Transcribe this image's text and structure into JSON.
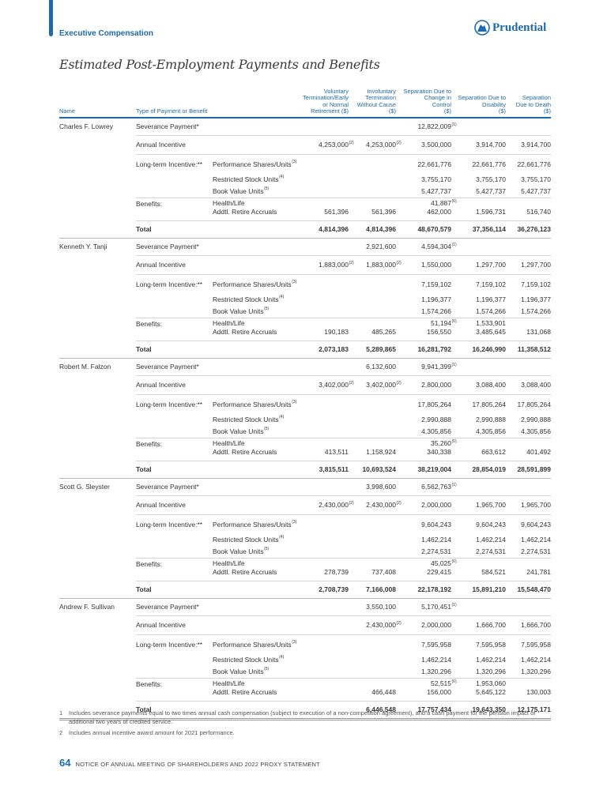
{
  "header": {
    "section": "Executive Compensation",
    "logo": "Prudential"
  },
  "title": "Estimated Post-Employment Payments and Benefits",
  "columns": {
    "name": "Name",
    "type": "Type of Payment or Benefit",
    "values": [
      [
        "Voluntary",
        "Termination/Early",
        "or Normal",
        "Retirement ($)"
      ],
      [
        "Involuntary",
        "Termination",
        "Without Cause",
        "($)"
      ],
      [
        "Separation Due to",
        "Change in",
        "Control",
        "($)"
      ],
      [
        "Separation Due to",
        "Disability",
        "($)"
      ],
      [
        "Separation",
        "Due to Death",
        "($)"
      ]
    ]
  },
  "labels": {
    "severance": "Severance Payment*",
    "annual": "Annual Incentive",
    "lti": "Long-term Incentive:**",
    "perf": "Performance Shares/Units",
    "perf_sup": "(3)",
    "rsu": "Restricted Stock Units",
    "rsu_sup": "(4)",
    "bvu": "Book Value Units",
    "bvu_sup": "(5)",
    "benefits": "Benefits:",
    "health": "Health/Life",
    "accruals": "Addtl. Retire Accruals",
    "total": "Total"
  },
  "people": [
    {
      "name": "Charles F. Lowrey",
      "severance": {
        "v": [
          "",
          "",
          "12,822,009",
          "",
          ""
        ],
        "s": [
          "",
          "",
          "(1)",
          "",
          ""
        ]
      },
      "annual": {
        "v": [
          "4,253,000",
          "4,253,000",
          "3,500,000",
          "3,914,700",
          "3,914,700"
        ],
        "s": [
          "(2)",
          "(2)",
          "",
          "",
          ""
        ]
      },
      "perf": {
        "v": [
          "",
          "",
          "22,661,776",
          "22,661,776",
          "22,661,776"
        ],
        "s": [
          "",
          "",
          "",
          "",
          ""
        ]
      },
      "rsu": {
        "v": [
          "",
          "",
          "3,755,170",
          "3,755,170",
          "3,755,170"
        ],
        "s": [
          "",
          "",
          "",
          "",
          ""
        ]
      },
      "bvu": {
        "v": [
          "",
          "",
          "5,427,737",
          "5,427,737",
          "5,427,737"
        ],
        "s": [
          "",
          "",
          "",
          "",
          ""
        ]
      },
      "health": {
        "v": [
          "",
          "",
          "41,887",
          "",
          ""
        ],
        "s": [
          "",
          "",
          "(6)",
          "",
          ""
        ]
      },
      "accruals": {
        "v": [
          "561,396",
          "561,396",
          "462,000",
          "1,596,731",
          "516,740"
        ],
        "s": [
          "",
          "",
          "",
          "",
          ""
        ]
      },
      "total": {
        "v": [
          "4,814,396",
          "4,814,396",
          "48,670,579",
          "37,356,114",
          "36,276,123"
        ],
        "s": [
          "",
          "",
          "",
          "",
          ""
        ]
      }
    },
    {
      "name": "Kenneth Y. Tanji",
      "severance": {
        "v": [
          "",
          "2,921,600",
          "4,594,304",
          "",
          ""
        ],
        "s": [
          "",
          "",
          "(1)",
          "",
          ""
        ]
      },
      "annual": {
        "v": [
          "1,883,000",
          "1,883,000",
          "1,550,000",
          "1,297,700",
          "1,297,700"
        ],
        "s": [
          "(2)",
          "(2)",
          "",
          "",
          ""
        ]
      },
      "perf": {
        "v": [
          "",
          "",
          "7,159,102",
          "7,159,102",
          "7,159,102"
        ],
        "s": [
          "",
          "",
          "",
          "",
          ""
        ]
      },
      "rsu": {
        "v": [
          "",
          "",
          "1,196,377",
          "1,196,377",
          "1,196,377"
        ],
        "s": [
          "",
          "",
          "",
          "",
          ""
        ]
      },
      "bvu": {
        "v": [
          "",
          "",
          "1,574,266",
          "1,574,266",
          "1,574,266"
        ],
        "s": [
          "",
          "",
          "",
          "",
          ""
        ]
      },
      "health": {
        "v": [
          "",
          "",
          "51,194",
          "1,533,901",
          ""
        ],
        "s": [
          "",
          "",
          "(6)",
          "",
          ""
        ]
      },
      "accruals": {
        "v": [
          "190,183",
          "485,265",
          "156,550",
          "3,485,645",
          "131,068"
        ],
        "s": [
          "",
          "",
          "",
          "",
          ""
        ]
      },
      "total": {
        "v": [
          "2,073,183",
          "5,289,865",
          "16,281,792",
          "16,246,990",
          "11,358,512"
        ],
        "s": [
          "",
          "",
          "",
          "",
          ""
        ]
      }
    },
    {
      "name": "Robert M. Falzon",
      "severance": {
        "v": [
          "",
          "6,132,600",
          "9,941,399",
          "",
          ""
        ],
        "s": [
          "",
          "",
          "(1)",
          "",
          ""
        ]
      },
      "annual": {
        "v": [
          "3,402,000",
          "3,402,000",
          "2,800,000",
          "3,088,400",
          "3,088,400"
        ],
        "s": [
          "(2)",
          "(2)",
          "",
          "",
          ""
        ]
      },
      "perf": {
        "v": [
          "",
          "",
          "17,805,264",
          "17,805,264",
          "17,805,264"
        ],
        "s": [
          "",
          "",
          "",
          "",
          ""
        ]
      },
      "rsu": {
        "v": [
          "",
          "",
          "2,990,888",
          "2,990,888",
          "2,990,888"
        ],
        "s": [
          "",
          "",
          "",
          "",
          ""
        ]
      },
      "bvu": {
        "v": [
          "",
          "",
          "4,305,856",
          "4,305,856",
          "4,305,856"
        ],
        "s": [
          "",
          "",
          "",
          "",
          ""
        ]
      },
      "health": {
        "v": [
          "",
          "",
          "35,260",
          "",
          ""
        ],
        "s": [
          "",
          "",
          "(6)",
          "",
          ""
        ]
      },
      "accruals": {
        "v": [
          "413,511",
          "1,158,924",
          "340,338",
          "663,612",
          "401,492"
        ],
        "s": [
          "",
          "",
          "",
          "",
          ""
        ]
      },
      "total": {
        "v": [
          "3,815,511",
          "10,693,524",
          "38,219,004",
          "28,854,019",
          "28,591,899"
        ],
        "s": [
          "",
          "",
          "",
          "",
          ""
        ]
      }
    },
    {
      "name": "Scott G. Sleyster",
      "severance": {
        "v": [
          "",
          "3,998,600",
          "6,562,763",
          "",
          ""
        ],
        "s": [
          "",
          "",
          "(1)",
          "",
          ""
        ]
      },
      "annual": {
        "v": [
          "2,430,000",
          "2,430,000",
          "2,000,000",
          "1,965,700",
          "1,965,700"
        ],
        "s": [
          "(2)",
          "(2)",
          "",
          "",
          ""
        ]
      },
      "perf": {
        "v": [
          "",
          "",
          "9,604,243",
          "9,604,243",
          "9,604,243"
        ],
        "s": [
          "",
          "",
          "",
          "",
          ""
        ]
      },
      "rsu": {
        "v": [
          "",
          "",
          "1,462,214",
          "1,462,214",
          "1,462,214"
        ],
        "s": [
          "",
          "",
          "",
          "",
          ""
        ]
      },
      "bvu": {
        "v": [
          "",
          "",
          "2,274,531",
          "2,274,531",
          "2,274,531"
        ],
        "s": [
          "",
          "",
          "",
          "",
          ""
        ]
      },
      "health": {
        "v": [
          "",
          "",
          "45,025",
          "",
          ""
        ],
        "s": [
          "",
          "",
          "(6)",
          "",
          ""
        ]
      },
      "accruals": {
        "v": [
          "278,739",
          "737,408",
          "229,415",
          "584,521",
          "241,781"
        ],
        "s": [
          "",
          "",
          "",
          "",
          ""
        ]
      },
      "total": {
        "v": [
          "2,708,739",
          "7,166,008",
          "22,178,192",
          "15,891,210",
          "15,548,470"
        ],
        "s": [
          "",
          "",
          "",
          "",
          ""
        ]
      }
    },
    {
      "name": "Andrew F. Sullivan",
      "severance": {
        "v": [
          "",
          "3,550,100",
          "5,170,451",
          "",
          ""
        ],
        "s": [
          "",
          "",
          "(1)",
          "",
          ""
        ]
      },
      "annual": {
        "v": [
          "",
          "2,430,000",
          "2,000,000",
          "1,666,700",
          "1,666,700"
        ],
        "s": [
          "",
          "(2)",
          "",
          "",
          ""
        ]
      },
      "perf": {
        "v": [
          "",
          "",
          "7,595,958",
          "7,595,958",
          "7,595,958"
        ],
        "s": [
          "",
          "",
          "",
          "",
          ""
        ]
      },
      "rsu": {
        "v": [
          "",
          "",
          "1,462,214",
          "1,462,214",
          "1,462,214"
        ],
        "s": [
          "",
          "",
          "",
          "",
          ""
        ]
      },
      "bvu": {
        "v": [
          "",
          "",
          "1,320,296",
          "1,320,296",
          "1,320,296"
        ],
        "s": [
          "",
          "",
          "",
          "",
          ""
        ]
      },
      "health": {
        "v": [
          "",
          "",
          "52,515",
          "1,953,060",
          ""
        ],
        "s": [
          "",
          "",
          "(6)",
          "",
          ""
        ]
      },
      "accruals": {
        "v": [
          "",
          "466,448",
          "156,000",
          "5,645,122",
          "130,003"
        ],
        "s": [
          "",
          "",
          "",
          "",
          ""
        ]
      },
      "total": {
        "v": [
          "",
          "6,446,548",
          "17,757,434",
          "19,643,350",
          "12,175,171"
        ],
        "s": [
          "",
          "",
          "",
          "",
          ""
        ]
      }
    }
  ],
  "footnotes": [
    {
      "n": "1",
      "text": "Includes severance payments equal to two times annual cash compensation (subject to execution of a non-competition agreement), and a cash payment for the pension impact of additional two years of credited service."
    },
    {
      "n": "2",
      "text": "Includes annual incentive award amount for 2021 performance."
    }
  ],
  "footer": {
    "page": "64",
    "text": "NOTICE OF ANNUAL MEETING OF SHAREHOLDERS AND 2022 PROXY STATEMENT"
  }
}
